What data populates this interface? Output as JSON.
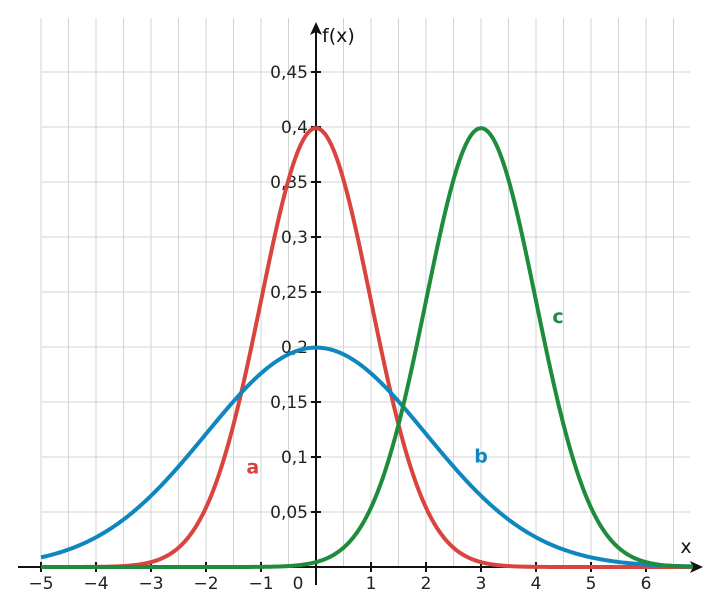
{
  "chart_data": {
    "type": "line",
    "xlabel": "x",
    "ylabel": "f(x)",
    "xlim": [
      -5,
      7
    ],
    "ylim": [
      0,
      0.49
    ],
    "grid": true,
    "x_ticks": [
      {
        "value": -5,
        "label": "−5"
      },
      {
        "value": -4,
        "label": "−4"
      },
      {
        "value": -3,
        "label": "−3"
      },
      {
        "value": -2,
        "label": "−2"
      },
      {
        "value": -1,
        "label": "−1"
      },
      {
        "value": 0,
        "label": "0"
      },
      {
        "value": 1,
        "label": "1"
      },
      {
        "value": 2,
        "label": "2"
      },
      {
        "value": 3,
        "label": "3"
      },
      {
        "value": 4,
        "label": "4"
      },
      {
        "value": 5,
        "label": "5"
      },
      {
        "value": 6,
        "label": "6"
      }
    ],
    "y_ticks": [
      {
        "value": 0.05,
        "label": "0,05"
      },
      {
        "value": 0.1,
        "label": "0,1"
      },
      {
        "value": 0.15,
        "label": "0,15"
      },
      {
        "value": 0.2,
        "label": "0,2"
      },
      {
        "value": 0.25,
        "label": "0,25"
      },
      {
        "value": 0.3,
        "label": "0,3"
      },
      {
        "value": 0.35,
        "label": "0,35"
      },
      {
        "value": 0.4,
        "label": "0,4"
      },
      {
        "value": 0.45,
        "label": "0,45"
      }
    ],
    "series": [
      {
        "label": "a",
        "mean": 0,
        "sd": 1,
        "color": "#d9443f",
        "label_pos": [
          -1.15,
          0.085
        ]
      },
      {
        "label": "b",
        "mean": 0,
        "sd": 2,
        "color": "#0f86bf",
        "label_pos": [
          3.0,
          0.095
        ]
      },
      {
        "label": "c",
        "mean": 3,
        "sd": 1,
        "color": "#1e8c3c",
        "label_pos": [
          4.4,
          0.222
        ]
      }
    ]
  }
}
